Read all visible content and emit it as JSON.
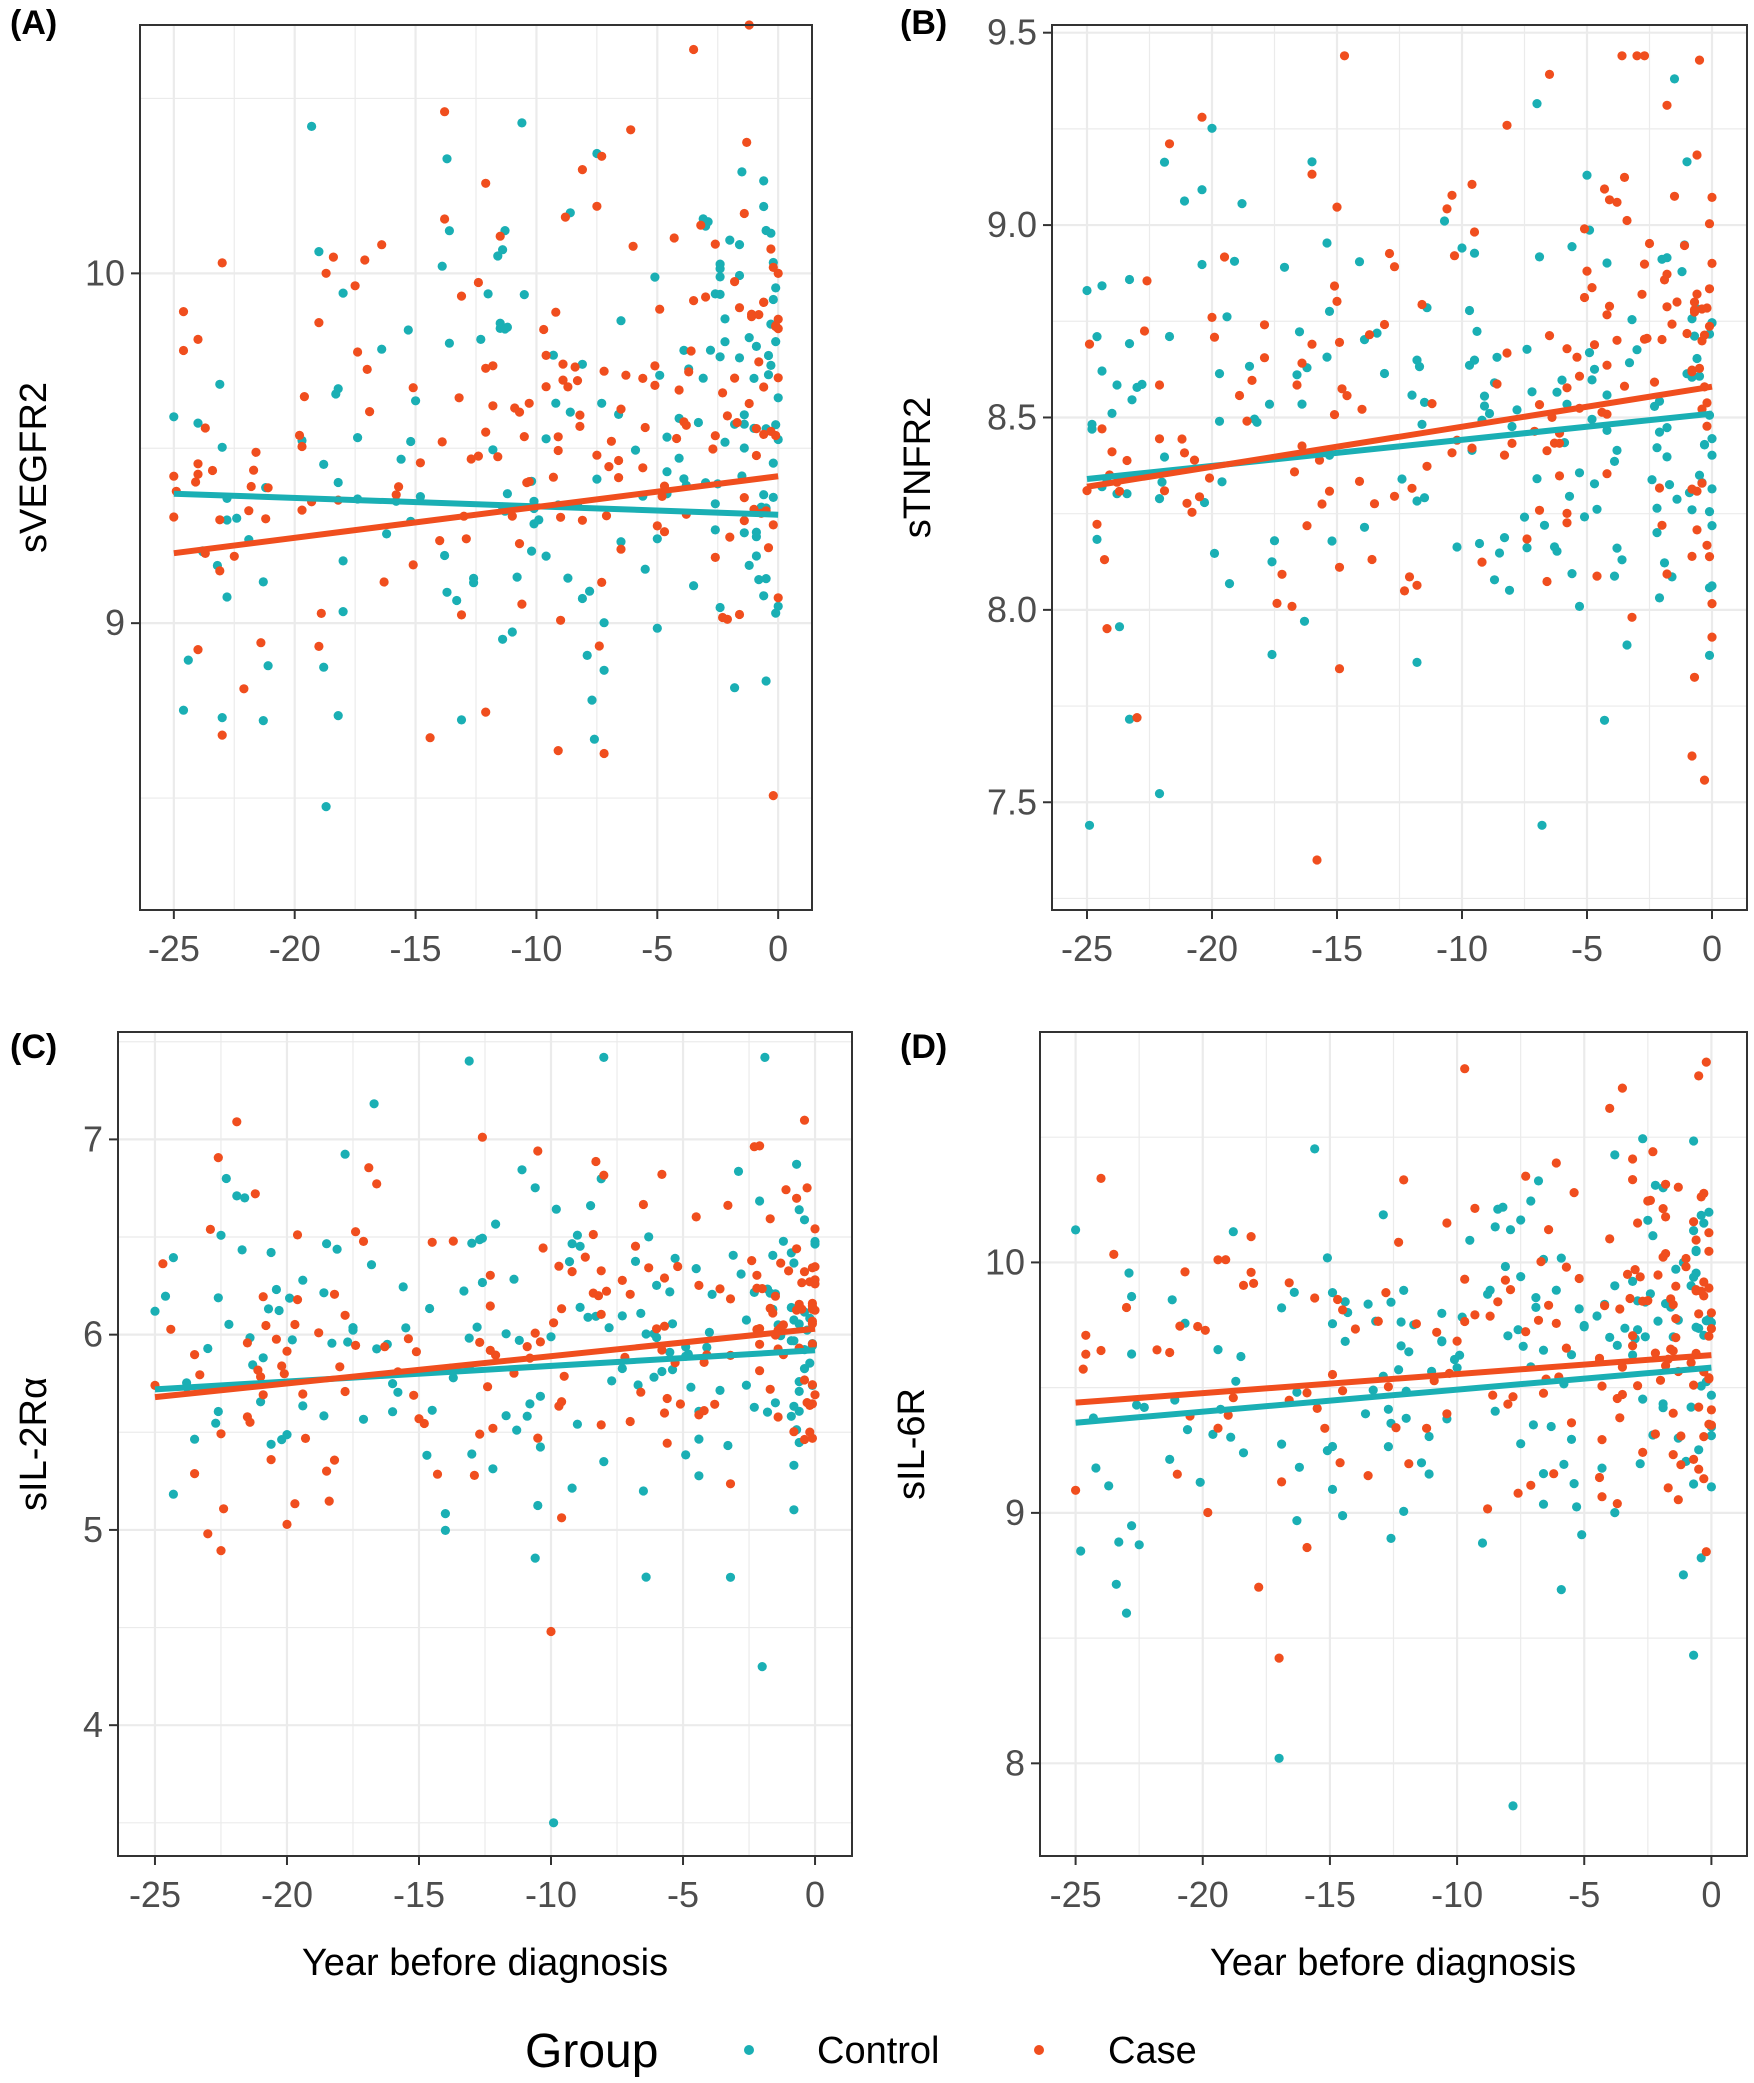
{
  "figure": {
    "legend": {
      "title": "Group",
      "entries": [
        {
          "key": "control",
          "label": "Control",
          "color": "#1aafb4"
        },
        {
          "key": "case",
          "label": "Case",
          "color": "#f04e1e"
        }
      ],
      "placement": "bottom"
    },
    "colors": {
      "control": "#1aafb4",
      "case": "#f04e1e",
      "grid": "#ebebeb",
      "frame": "#333333"
    }
  },
  "chart_data": [
    {
      "type": "scatter",
      "panel_label": "(A)",
      "xlabel": "",
      "ylabel": "sVEGFR2",
      "xlim": [
        -26.4,
        1.4
      ],
      "ylim": [
        8.18,
        10.71
      ],
      "x_ticks": [
        -25,
        -20,
        -15,
        -10,
        -5,
        0
      ],
      "x_tick_labels": [
        "-25",
        "-20",
        "-15",
        "-10",
        "-5",
        "0"
      ],
      "y_ticks": [
        9,
        10
      ],
      "y_tick_labels": [
        "9",
        "10"
      ],
      "grid": true,
      "point_count_per_group": 180,
      "series": [
        {
          "name": "Control",
          "seed": 101,
          "trend": [
            [
              -25,
              9.37
            ],
            [
              0,
              9.31
            ]
          ],
          "y_center_range": [
            9.0,
            9.75
          ],
          "y_sd": 0.37,
          "y_bounds": [
            8.43,
            10.43
          ],
          "x_extremes": [
            [
              -25,
              9.59
            ],
            [
              -23,
              8.73
            ],
            [
              -19.3,
              10.42
            ],
            [
              -1.5,
              10.29
            ]
          ]
        },
        {
          "name": "Case",
          "seed": 202,
          "trend": [
            [
              -25,
              9.2
            ],
            [
              0,
              9.42
            ]
          ],
          "y_center_range": [
            9.1,
            9.8
          ],
          "y_sd": 0.38,
          "y_bounds": [
            8.27,
            10.71
          ],
          "x_extremes": [
            [
              -25,
              9.42
            ],
            [
              -23,
              10.03
            ],
            [
              -23,
              8.68
            ],
            [
              -3.5,
              10.64
            ],
            [
              -1.2,
              10.71
            ]
          ]
        }
      ]
    },
    {
      "type": "scatter",
      "panel_label": "(B)",
      "xlabel": "",
      "ylabel": "sTNFR2",
      "xlim": [
        -26.4,
        1.4
      ],
      "ylim": [
        7.22,
        9.52
      ],
      "x_ticks": [
        -25,
        -20,
        -15,
        -10,
        -5,
        0
      ],
      "x_tick_labels": [
        "-25",
        "-20",
        "-15",
        "-10",
        "-5",
        "0"
      ],
      "y_ticks": [
        7.5,
        8.0,
        8.5,
        9.0,
        9.5
      ],
      "y_tick_labels": [
        "7.5",
        "8.0",
        "8.5",
        "9.0",
        "9.5"
      ],
      "grid": true,
      "point_count_per_group": 180,
      "series": [
        {
          "name": "Control",
          "seed": 303,
          "trend": [
            [
              -25,
              8.34
            ],
            [
              0,
              8.51
            ]
          ],
          "y_center_range": [
            8.3,
            8.6
          ],
          "y_sd": 0.34,
          "y_bounds": [
            7.44,
            9.38
          ],
          "x_extremes": [
            [
              -25,
              8.83
            ],
            [
              -1.5,
              9.38
            ],
            [
              -6.8,
              7.44
            ]
          ]
        },
        {
          "name": "Case",
          "seed": 404,
          "trend": [
            [
              -25,
              8.32
            ],
            [
              0,
              8.58
            ]
          ],
          "y_center_range": [
            8.3,
            8.7
          ],
          "y_sd": 0.35,
          "y_bounds": [
            7.35,
            9.44
          ],
          "x_extremes": [
            [
              -25,
              8.31
            ],
            [
              -23,
              7.72
            ],
            [
              -15.8,
              7.35
            ],
            [
              -14.7,
              9.44
            ]
          ]
        }
      ]
    },
    {
      "type": "scatter",
      "panel_label": "(C)",
      "xlabel": "Year before diagnosis",
      "ylabel": "sIL-2Rα",
      "xlim": [
        -26.4,
        1.4
      ],
      "ylim": [
        3.33,
        7.55
      ],
      "x_ticks": [
        -25,
        -20,
        -15,
        -10,
        -5,
        0
      ],
      "x_tick_labels": [
        "-25",
        "-20",
        "-15",
        "-10",
        "-5",
        "0"
      ],
      "y_ticks": [
        4,
        5,
        6,
        7
      ],
      "y_tick_labels": [
        "4",
        "5",
        "6",
        "7"
      ],
      "grid": true,
      "point_count_per_group": 180,
      "series": [
        {
          "name": "Control",
          "seed": 505,
          "trend": [
            [
              -25,
              5.72
            ],
            [
              0,
              5.92
            ]
          ],
          "y_center_range": [
            5.6,
            6.1
          ],
          "y_sd": 0.5,
          "y_bounds": [
            3.5,
            7.42
          ],
          "x_extremes": [
            [
              -25,
              6.12
            ],
            [
              -9.9,
              3.5
            ],
            [
              -1.9,
              7.42
            ],
            [
              -2.0,
              4.3
            ]
          ]
        },
        {
          "name": "Case",
          "seed": 606,
          "trend": [
            [
              -25,
              5.68
            ],
            [
              0,
              6.03
            ]
          ],
          "y_center_range": [
            5.6,
            6.3
          ],
          "y_sd": 0.5,
          "y_bounds": [
            4.48,
            7.14
          ],
          "x_extremes": [
            [
              -25,
              5.74
            ],
            [
              -23,
              4.98
            ],
            [
              -21.9,
              7.09
            ],
            [
              -10,
              4.48
            ]
          ]
        }
      ]
    },
    {
      "type": "scatter",
      "panel_label": "(D)",
      "xlabel": "Year before diagnosis",
      "ylabel": "sIL-6R",
      "xlim": [
        -26.4,
        1.4
      ],
      "ylim": [
        7.63,
        10.92
      ],
      "x_ticks": [
        -25,
        -20,
        -15,
        -10,
        -5,
        0
      ],
      "x_tick_labels": [
        "-25",
        "-20",
        "-15",
        "-10",
        "-5",
        "0"
      ],
      "y_ticks": [
        8,
        9,
        10
      ],
      "y_tick_labels": [
        "8",
        "9",
        "10"
      ],
      "grid": true,
      "point_count_per_group": 180,
      "series": [
        {
          "name": "Control",
          "seed": 707,
          "trend": [
            [
              -25,
              9.36
            ],
            [
              0,
              9.58
            ]
          ],
          "y_center_range": [
            9.3,
            9.75
          ],
          "y_sd": 0.38,
          "y_bounds": [
            7.83,
            10.68
          ],
          "x_extremes": [
            [
              -25,
              10.13
            ],
            [
              -23,
              8.6
            ],
            [
              -17,
              8.02
            ],
            [
              -7.8,
              7.83
            ]
          ]
        },
        {
          "name": "Case",
          "seed": 808,
          "trend": [
            [
              -25,
              9.44
            ],
            [
              0,
              9.63
            ]
          ],
          "y_center_range": [
            9.3,
            9.85
          ],
          "y_sd": 0.38,
          "y_bounds": [
            8.42,
            10.8
          ],
          "x_extremes": [
            [
              -25,
              9.09
            ],
            [
              -17,
              8.42
            ],
            [
              -0.2,
              10.8
            ],
            [
              -23,
              9.82
            ]
          ]
        }
      ]
    }
  ]
}
